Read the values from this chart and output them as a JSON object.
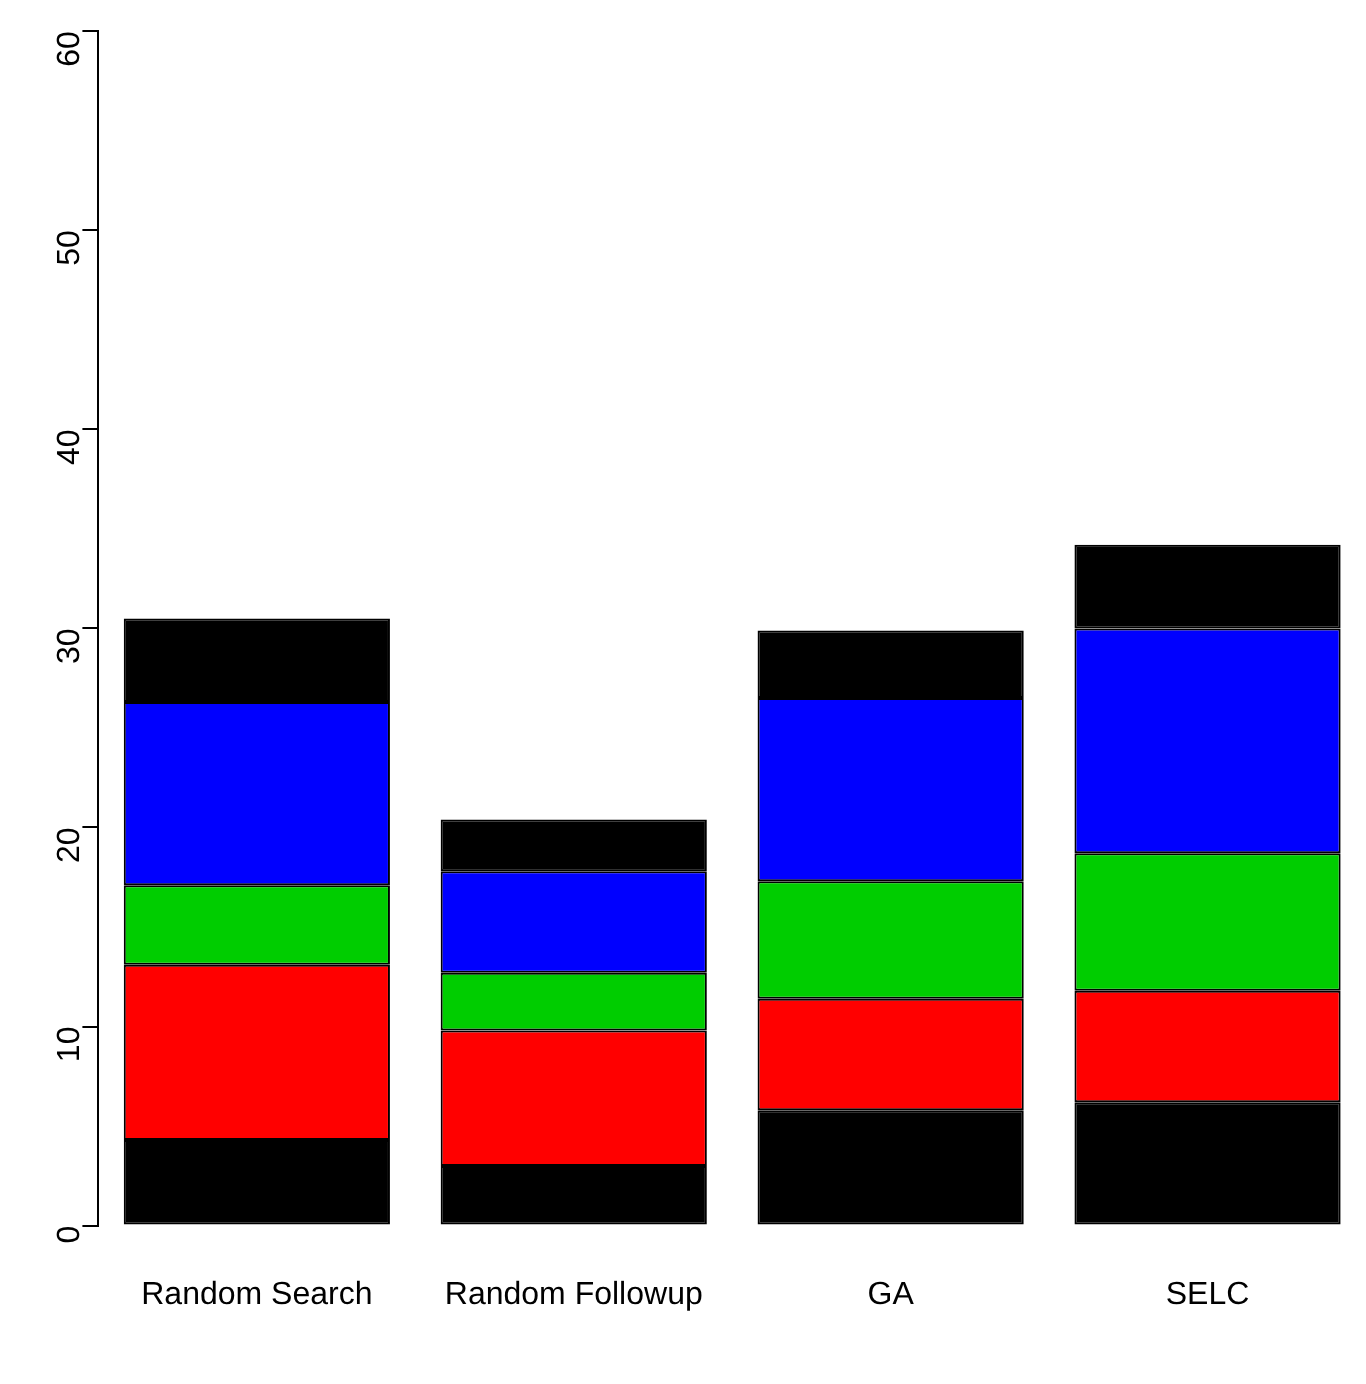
{
  "chart_data": {
    "type": "bar",
    "stacked": true,
    "categories": [
      "Random Search",
      "Random Followup",
      "GA",
      "SELC"
    ],
    "series": [
      {
        "color": "#000000",
        "values": [
          4.3,
          3.0,
          5.8,
          6.2
        ]
      },
      {
        "color": "#ff0000",
        "values": [
          8.8,
          6.8,
          5.6,
          5.6
        ]
      },
      {
        "color": "#00cd00",
        "values": [
          4.0,
          2.9,
          5.9,
          6.9
        ]
      },
      {
        "color": "#0000ff",
        "values": [
          9.2,
          5.1,
          9.2,
          11.3
        ]
      },
      {
        "color": "#000000",
        "values": [
          4.2,
          2.6,
          3.4,
          4.2
        ]
      }
    ],
    "ylim": [
      0,
      60
    ],
    "yticks": [
      0,
      10,
      20,
      30,
      40,
      50,
      60
    ],
    "grid": false,
    "legend": false
  }
}
